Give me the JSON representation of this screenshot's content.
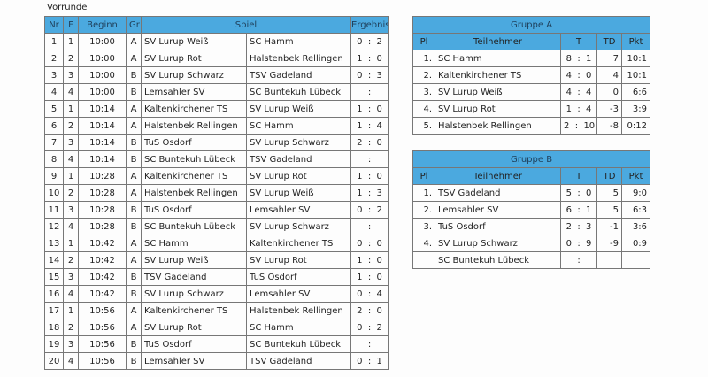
{
  "title": "Vorrunde",
  "games": {
    "headers": {
      "nr": "Nr",
      "f": "F",
      "beginn": "Beginn",
      "gr": "Gr",
      "spiel": "Spiel",
      "ergebnis": "Ergebnis"
    },
    "rows": [
      [
        "1",
        "1",
        "10:00",
        "A",
        "SV Lurup Weiß",
        "SC Hamm",
        "0  :  2"
      ],
      [
        "2",
        "2",
        "10:00",
        "A",
        "SV Lurup Rot",
        "Halstenbek Rellingen",
        "1  :  0"
      ],
      [
        "3",
        "3",
        "10:00",
        "B",
        "SV Lurup Schwarz",
        "TSV Gadeland",
        "0  :  3"
      ],
      [
        "4",
        "4",
        "10:00",
        "B",
        "Lemsahler SV",
        "SC Buntekuh Lübeck",
        ":"
      ],
      [
        "5",
        "1",
        "10:14",
        "A",
        "Kaltenkirchener TS",
        "SV Lurup Weiß",
        "1  :  0"
      ],
      [
        "6",
        "2",
        "10:14",
        "A",
        "Halstenbek Rellingen",
        "SC Hamm",
        "1  :  4"
      ],
      [
        "7",
        "3",
        "10:14",
        "B",
        "TuS Osdorf",
        "SV Lurup Schwarz",
        "2  :  0"
      ],
      [
        "8",
        "4",
        "10:14",
        "B",
        "SC Buntekuh Lübeck",
        "TSV Gadeland",
        ":"
      ],
      [
        "9",
        "1",
        "10:28",
        "A",
        "Kaltenkirchener TS",
        "SV Lurup Rot",
        "1  :  0"
      ],
      [
        "10",
        "2",
        "10:28",
        "A",
        "Halstenbek Rellingen",
        "SV Lurup Weiß",
        "1  :  3"
      ],
      [
        "11",
        "3",
        "10:28",
        "B",
        "TuS Osdorf",
        "Lemsahler SV",
        "0  :  2"
      ],
      [
        "12",
        "4",
        "10:28",
        "B",
        "SC Buntekuh Lübeck",
        "SV Lurup Schwarz",
        ":"
      ],
      [
        "13",
        "1",
        "10:42",
        "A",
        "SC Hamm",
        "Kaltenkirchener TS",
        "0  :  0"
      ],
      [
        "14",
        "2",
        "10:42",
        "A",
        "SV Lurup Weiß",
        "SV Lurup Rot",
        "1  :  0"
      ],
      [
        "15",
        "3",
        "10:42",
        "B",
        "TSV Gadeland",
        "TuS Osdorf",
        "1  :  0"
      ],
      [
        "16",
        "4",
        "10:42",
        "B",
        "SV Lurup Schwarz",
        "Lemsahler SV",
        "0  :  4"
      ],
      [
        "17",
        "1",
        "10:56",
        "A",
        "Kaltenkirchener TS",
        "Halstenbek Rellingen",
        "2  :  0"
      ],
      [
        "18",
        "2",
        "10:56",
        "A",
        "SV Lurup Rot",
        "SC Hamm",
        "0  :  2"
      ],
      [
        "19",
        "3",
        "10:56",
        "B",
        "TuS Osdorf",
        "SC Buntekuh Lübeck",
        ":"
      ],
      [
        "20",
        "4",
        "10:56",
        "B",
        "Lemsahler SV",
        "TSV Gadeland",
        "0  :  1"
      ]
    ]
  },
  "groups": [
    {
      "title": "Gruppe A",
      "headers": [
        "Pl",
        "Teilnehmer",
        "T",
        "TD",
        "Pkt"
      ],
      "rows": [
        [
          "1.",
          "SC Hamm",
          "8  :  1",
          "7",
          "10:1"
        ],
        [
          "2.",
          "Kaltenkirchener TS",
          "4  :  0",
          "4",
          "10:1"
        ],
        [
          "3.",
          "SV Lurup Weiß",
          "4  :  4",
          "0",
          "6:6"
        ],
        [
          "4.",
          "SV Lurup Rot",
          "1  :  4",
          "-3",
          "3:9"
        ],
        [
          "5.",
          "Halstenbek Rellingen",
          "2  :  10",
          "-8",
          "0:12"
        ]
      ]
    },
    {
      "title": "Gruppe B",
      "headers": [
        "Pl",
        "Teilnehmer",
        "T",
        "TD",
        "Pkt"
      ],
      "rows": [
        [
          "1.",
          "TSV Gadeland",
          "5  :  0",
          "5",
          "9:0"
        ],
        [
          "2.",
          "Lemsahler SV",
          "6  :  1",
          "5",
          "6:3"
        ],
        [
          "3.",
          "TuS Osdorf",
          "2  :  3",
          "-1",
          "3:6"
        ],
        [
          "4.",
          "SV Lurup Schwarz",
          "0  :  9",
          "-9",
          "0:9"
        ],
        [
          "",
          "SC Buntekuh Lübeck",
          ":",
          "",
          ""
        ]
      ]
    }
  ]
}
